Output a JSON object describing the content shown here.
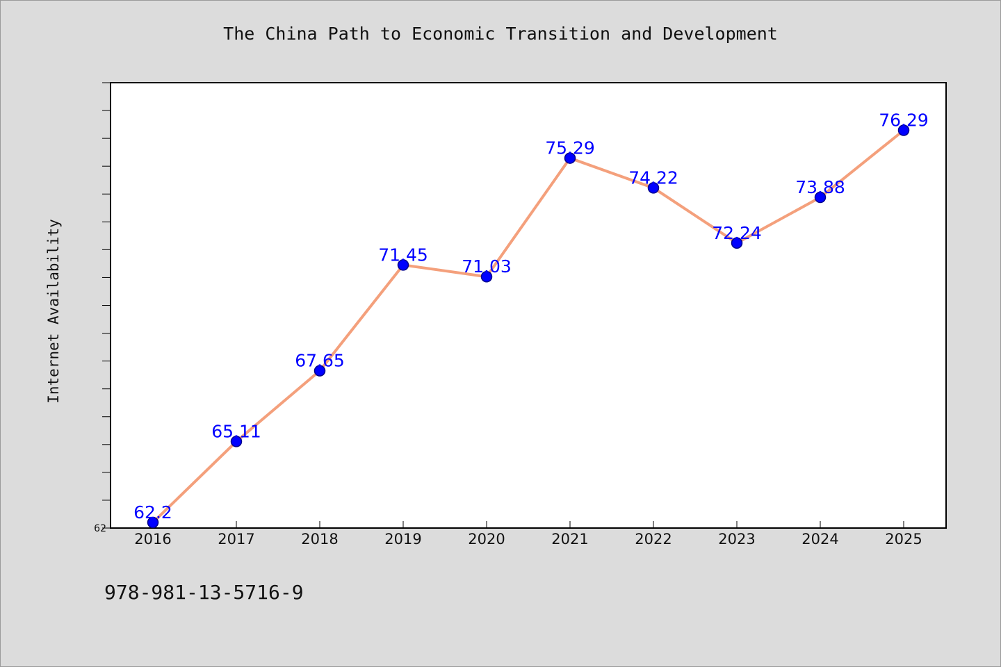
{
  "chart_data": {
    "type": "line",
    "title": "The China Path to Economic Transition and Development",
    "xlabel": "",
    "ylabel": "Internet Availability",
    "categories": [
      "2016",
      "2017",
      "2018",
      "2019",
      "2020",
      "2021",
      "2022",
      "2023",
      "2024",
      "2025"
    ],
    "series": [
      {
        "values": [
          62.2,
          65.11,
          67.65,
          71.45,
          71.03,
          75.29,
          74.22,
          72.24,
          73.88,
          76.29
        ],
        "data_labels": [
          "62.2",
          "65.11",
          "67.65",
          "71.45",
          "71.03",
          "75.29",
          "74.22",
          "72.24",
          "73.88",
          "76.29"
        ]
      }
    ],
    "ylim": [
      62,
      78
    ],
    "ytick_labels": [
      "62"
    ],
    "grid": false,
    "colors": {
      "line": "#f4a07c",
      "marker": "#0000ff",
      "data_label": "#0000ff",
      "background": "#dcdcdc",
      "plot_area": "#ffffff"
    }
  },
  "footer": {
    "isbn": "978-981-13-5716-9"
  }
}
